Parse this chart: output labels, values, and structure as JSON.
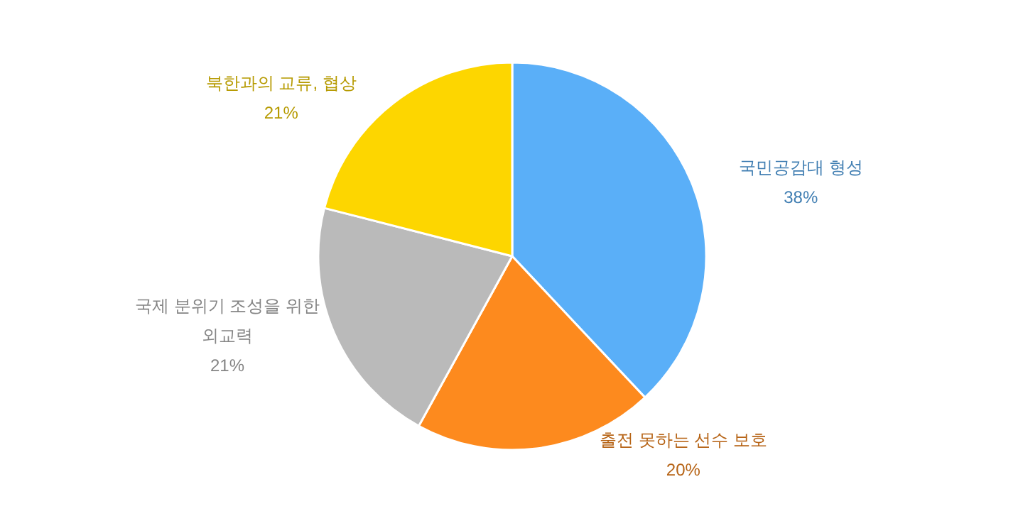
{
  "chart_data": {
    "type": "pie",
    "categories": [
      "국민공감대 형성",
      "출전 못하는 선수 보호",
      "국제 분위기 조성을 위한\n외교력",
      "북한과의 교류, 협상"
    ],
    "values": [
      38,
      20,
      21,
      21
    ],
    "colors": [
      "#5aaff8",
      "#fd8a1e",
      "#bababa",
      "#fdd600"
    ],
    "value_labels": [
      "38%",
      "20%",
      "21%",
      "21%"
    ]
  }
}
